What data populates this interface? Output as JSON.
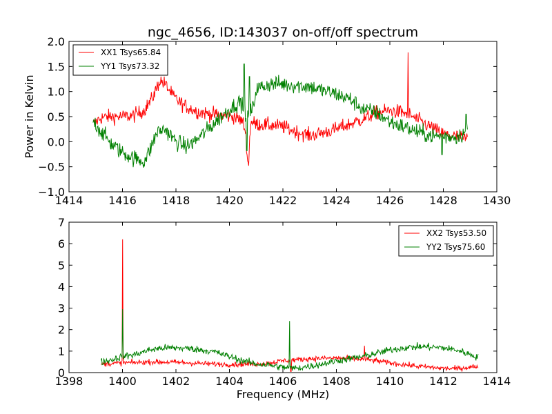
{
  "chart_data": [
    {
      "type": "line",
      "title": "ngc_4656, ID:143037 on-off/off spectrum",
      "xlabel": "",
      "ylabel": "Power in Kelvin",
      "xlim": [
        1414,
        1430
      ],
      "ylim": [
        -1.0,
        2.0
      ],
      "xticks": [
        1414,
        1416,
        1418,
        1420,
        1422,
        1424,
        1426,
        1428,
        1430
      ],
      "yticks": [
        -1.0,
        -0.5,
        0.0,
        0.5,
        1.0,
        1.5,
        2.0
      ],
      "xtick_labels": [
        "1414",
        "1416",
        "1418",
        "1420",
        "1422",
        "1424",
        "1426",
        "1428",
        "1430"
      ],
      "ytick_labels": [
        "−1.0",
        "−0.5",
        "0.0",
        "0.5",
        "1.0",
        "1.5",
        "2.0"
      ],
      "legend_position": "top-left",
      "series": [
        {
          "name": "XX1 Tsys65.84",
          "color": "#ff0000",
          "noise": 0.07,
          "points": [
            [
              1414.9,
              0.35
            ],
            [
              1415.2,
              0.48
            ],
            [
              1415.6,
              0.5
            ],
            [
              1416.0,
              0.5
            ],
            [
              1416.4,
              0.52
            ],
            [
              1416.8,
              0.62
            ],
            [
              1417.1,
              0.85
            ],
            [
              1417.4,
              1.22
            ],
            [
              1417.6,
              1.15
            ],
            [
              1417.9,
              0.9
            ],
            [
              1418.3,
              0.72
            ],
            [
              1418.8,
              0.6
            ],
            [
              1419.3,
              0.55
            ],
            [
              1419.8,
              0.52
            ],
            [
              1420.2,
              0.5
            ],
            [
              1420.5,
              0.4
            ],
            [
              1420.6,
              0.2
            ],
            [
              1420.7,
              -0.45
            ],
            [
              1420.8,
              0.4
            ],
            [
              1421.0,
              0.35
            ],
            [
              1421.5,
              0.33
            ],
            [
              1422.0,
              0.3
            ],
            [
              1422.5,
              0.2
            ],
            [
              1423.0,
              0.12
            ],
            [
              1423.5,
              0.18
            ],
            [
              1424.0,
              0.25
            ],
            [
              1424.5,
              0.35
            ],
            [
              1425.0,
              0.45
            ],
            [
              1425.5,
              0.58
            ],
            [
              1426.0,
              0.62
            ],
            [
              1426.5,
              0.58
            ],
            [
              1426.7,
              0.55
            ],
            [
              1427.0,
              0.45
            ],
            [
              1427.5,
              0.3
            ],
            [
              1428.0,
              0.15
            ],
            [
              1428.5,
              0.1
            ],
            [
              1428.9,
              0.05
            ]
          ],
          "spikes": [
            [
              1426.68,
              1.78
            ],
            [
              1420.72,
              -0.48
            ]
          ]
        },
        {
          "name": "YY1 Tsys73.32",
          "color": "#008000",
          "noise": 0.08,
          "points": [
            [
              1414.9,
              0.42
            ],
            [
              1415.2,
              0.2
            ],
            [
              1415.6,
              -0.05
            ],
            [
              1416.0,
              -0.22
            ],
            [
              1416.4,
              -0.32
            ],
            [
              1416.8,
              -0.4
            ],
            [
              1417.0,
              -0.2
            ],
            [
              1417.3,
              0.2
            ],
            [
              1417.6,
              0.25
            ],
            [
              1418.0,
              0.0
            ],
            [
              1418.4,
              -0.1
            ],
            [
              1418.8,
              0.05
            ],
            [
              1419.2,
              0.25
            ],
            [
              1419.6,
              0.45
            ],
            [
              1420.0,
              0.65
            ],
            [
              1420.4,
              0.8
            ],
            [
              1420.7,
              0.5
            ],
            [
              1420.9,
              0.7
            ],
            [
              1421.0,
              1.05
            ],
            [
              1421.5,
              1.15
            ],
            [
              1422.0,
              1.15
            ],
            [
              1422.5,
              1.12
            ],
            [
              1423.0,
              1.1
            ],
            [
              1423.5,
              1.02
            ],
            [
              1424.0,
              0.95
            ],
            [
              1424.5,
              0.85
            ],
            [
              1425.0,
              0.65
            ],
            [
              1425.5,
              0.58
            ],
            [
              1426.0,
              0.4
            ],
            [
              1426.5,
              0.3
            ],
            [
              1427.0,
              0.2
            ],
            [
              1427.5,
              0.12
            ],
            [
              1428.0,
              0.1
            ],
            [
              1428.5,
              0.1
            ],
            [
              1428.9,
              0.2
            ]
          ],
          "spikes": [
            [
              1420.55,
              1.55
            ],
            [
              1420.65,
              -0.18
            ],
            [
              1420.75,
              1.3
            ],
            [
              1428.85,
              0.55
            ],
            [
              1427.95,
              -0.26
            ]
          ]
        }
      ]
    },
    {
      "type": "line",
      "title": "",
      "xlabel": "Frequency (MHz)",
      "ylabel": "",
      "xlim": [
        1398,
        1414
      ],
      "ylim": [
        0,
        7
      ],
      "xticks": [
        1398,
        1400,
        1402,
        1404,
        1406,
        1408,
        1410,
        1412,
        1414
      ],
      "yticks": [
        0,
        1,
        2,
        3,
        4,
        5,
        6,
        7
      ],
      "xtick_labels": [
        "1398",
        "1400",
        "1402",
        "1404",
        "1406",
        "1408",
        "1410",
        "1412",
        "1414"
      ],
      "ytick_labels": [
        "0",
        "1",
        "2",
        "3",
        "4",
        "5",
        "6",
        "7"
      ],
      "legend_position": "top-right",
      "series": [
        {
          "name": "XX2 Tsys53.50",
          "color": "#ff0000",
          "noise": 0.06,
          "points": [
            [
              1399.2,
              0.4
            ],
            [
              1399.6,
              0.42
            ],
            [
              1400.0,
              0.45
            ],
            [
              1401.0,
              0.5
            ],
            [
              1402.0,
              0.48
            ],
            [
              1403.0,
              0.42
            ],
            [
              1404.0,
              0.38
            ],
            [
              1405.0,
              0.4
            ],
            [
              1405.5,
              0.45
            ],
            [
              1406.0,
              0.55
            ],
            [
              1406.5,
              0.6
            ],
            [
              1407.0,
              0.65
            ],
            [
              1408.0,
              0.68
            ],
            [
              1409.0,
              0.62
            ],
            [
              1409.5,
              0.55
            ],
            [
              1410.0,
              0.45
            ],
            [
              1411.0,
              0.3
            ],
            [
              1412.0,
              0.2
            ],
            [
              1412.5,
              0.18
            ],
            [
              1413.0,
              0.25
            ],
            [
              1413.3,
              0.3
            ]
          ],
          "spikes": [
            [
              1400.0,
              6.2
            ],
            [
              1409.05,
              1.25
            ],
            [
              1406.3,
              0.05
            ]
          ]
        },
        {
          "name": "YY2 Tsys75.60",
          "color": "#008000",
          "noise": 0.08,
          "points": [
            [
              1399.2,
              0.5
            ],
            [
              1399.6,
              0.6
            ],
            [
              1400.0,
              0.75
            ],
            [
              1400.5,
              0.85
            ],
            [
              1401.0,
              1.05
            ],
            [
              1401.5,
              1.15
            ],
            [
              1402.0,
              1.15
            ],
            [
              1402.5,
              1.12
            ],
            [
              1403.0,
              1.05
            ],
            [
              1403.5,
              0.95
            ],
            [
              1404.0,
              0.75
            ],
            [
              1404.5,
              0.55
            ],
            [
              1405.0,
              0.4
            ],
            [
              1405.5,
              0.35
            ],
            [
              1406.0,
              0.25
            ],
            [
              1406.5,
              0.2
            ],
            [
              1407.0,
              0.3
            ],
            [
              1407.5,
              0.4
            ],
            [
              1408.0,
              0.55
            ],
            [
              1408.5,
              0.65
            ],
            [
              1409.0,
              0.75
            ],
            [
              1409.5,
              0.9
            ],
            [
              1410.0,
              1.05
            ],
            [
              1410.5,
              1.15
            ],
            [
              1411.0,
              1.2
            ],
            [
              1411.5,
              1.2
            ],
            [
              1412.0,
              1.15
            ],
            [
              1412.5,
              1.05
            ],
            [
              1413.0,
              0.85
            ],
            [
              1413.3,
              0.7
            ]
          ],
          "spikes": [
            [
              1400.0,
              2.95
            ],
            [
              1406.25,
              2.4
            ]
          ]
        }
      ]
    }
  ]
}
